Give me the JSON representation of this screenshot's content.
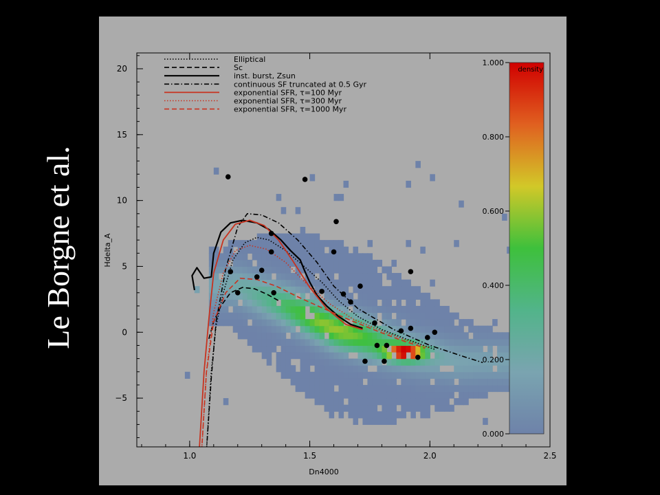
{
  "slide": {
    "side_title": "Le Borgne et al."
  },
  "chart_data": {
    "type": "scatter",
    "title": "",
    "xlabel": "Dn4000",
    "ylabel": "Hdelta_A",
    "xlim": [
      0.78,
      2.5
    ],
    "ylim": [
      -8.7,
      21.2
    ],
    "xticks": [
      1.0,
      1.5,
      2.0,
      2.5
    ],
    "xtick_labels": [
      "1.0",
      "1.5",
      "2.0",
      "2.5"
    ],
    "yticks": [
      -5,
      0,
      5,
      10,
      15,
      20
    ],
    "ytick_labels": [
      "−5",
      "0",
      "5",
      "10",
      "15",
      "20"
    ],
    "grid": false,
    "legend_position": "top-left",
    "colorbar": {
      "label": "density",
      "ticks": [
        0.0,
        0.2,
        0.4,
        0.6,
        0.8,
        1.0
      ],
      "tick_labels": [
        "0.000",
        "0.200",
        "0.400",
        "0.600",
        "0.800",
        "1.000"
      ],
      "colors": [
        "#6e82a9",
        "#7aa4b0",
        "#52b48a",
        "#3ec03c",
        "#d2c828",
        "#e06020",
        "#d00000"
      ]
    },
    "density_ridge": [
      [
        1.2,
        3.5
      ],
      [
        1.4,
        2.0
      ],
      [
        1.6,
        0.3
      ],
      [
        1.8,
        -0.8
      ],
      [
        1.95,
        -1.6
      ],
      [
        2.1,
        -2.2
      ]
    ],
    "density_peak": [
      1.9,
      -1.5
    ],
    "series": [
      {
        "name": "Elliptical",
        "color": "#000000",
        "dash": "dot",
        "width": 1.6,
        "points": [
          [
            1.07,
            -9
          ],
          [
            1.09,
            -3
          ],
          [
            1.11,
            0.5
          ],
          [
            1.14,
            3
          ],
          [
            1.18,
            5.5
          ],
          [
            1.23,
            6.8
          ],
          [
            1.28,
            7.2
          ],
          [
            1.33,
            7
          ],
          [
            1.4,
            6.2
          ],
          [
            1.47,
            5.1
          ],
          [
            1.55,
            3.8
          ],
          [
            1.62,
            2.4
          ],
          [
            1.7,
            1.2
          ],
          [
            1.8,
            0.2
          ],
          [
            1.9,
            -0.5
          ],
          [
            2.02,
            -1.3
          ]
        ]
      },
      {
        "name": "Sc",
        "color": "#000000",
        "dash": "dash",
        "width": 1.6,
        "points": [
          [
            1.08,
            -0.5
          ],
          [
            1.1,
            0.8
          ],
          [
            1.13,
            2
          ],
          [
            1.17,
            3
          ],
          [
            1.22,
            3.4
          ],
          [
            1.27,
            3.3
          ],
          [
            1.32,
            2.9
          ],
          [
            1.37,
            2.4
          ]
        ]
      },
      {
        "name": "inst. burst, Zsun",
        "color": "#000000",
        "dash": "solid",
        "width": 2.2,
        "points": [
          [
            1.02,
            3.2
          ],
          [
            1.01,
            4.3
          ],
          [
            1.03,
            4.9
          ],
          [
            1.06,
            4.1
          ],
          [
            1.09,
            4.2
          ],
          [
            1.1,
            6
          ],
          [
            1.13,
            7.6
          ],
          [
            1.17,
            8.3
          ],
          [
            1.22,
            8.5
          ],
          [
            1.28,
            8.3
          ],
          [
            1.33,
            7.8
          ],
          [
            1.38,
            7
          ],
          [
            1.42,
            6.2
          ],
          [
            1.46,
            5.5
          ],
          [
            1.48,
            4.6
          ],
          [
            1.5,
            3.8
          ],
          [
            1.53,
            2.8
          ],
          [
            1.57,
            2.0
          ],
          [
            1.62,
            1.2
          ],
          [
            1.67,
            0.6
          ],
          [
            1.72,
            0.3
          ]
        ]
      },
      {
        "name": "continuous SF truncated at 0.5 Gyr",
        "color": "#000000",
        "dash": "dashdot",
        "width": 1.6,
        "points": [
          [
            1.07,
            -9
          ],
          [
            1.09,
            -3.5
          ],
          [
            1.11,
            0.8
          ],
          [
            1.15,
            4.8
          ],
          [
            1.2,
            8
          ],
          [
            1.24,
            9
          ],
          [
            1.3,
            8.9
          ],
          [
            1.37,
            8.3
          ],
          [
            1.45,
            7
          ],
          [
            1.53,
            5.3
          ],
          [
            1.6,
            3.5
          ],
          [
            1.7,
            1.8
          ],
          [
            1.85,
            0.2
          ],
          [
            2.0,
            -1
          ],
          [
            2.15,
            -1.9
          ],
          [
            2.22,
            -2.3
          ]
        ]
      },
      {
        "name": "exponential SFR, τ=100 Myr",
        "color": "#c8321e",
        "dash": "solid",
        "width": 1.8,
        "points": [
          [
            1.04,
            -9
          ],
          [
            1.06,
            -3
          ],
          [
            1.08,
            1
          ],
          [
            1.1,
            4.5
          ],
          [
            1.14,
            7
          ],
          [
            1.19,
            8.2
          ],
          [
            1.25,
            8.5
          ],
          [
            1.31,
            8.1
          ],
          [
            1.37,
            7
          ],
          [
            1.43,
            5.4
          ],
          [
            1.5,
            3.4
          ],
          [
            1.57,
            1.8
          ],
          [
            1.65,
            0.6
          ],
          [
            1.72,
            0.2
          ]
        ]
      },
      {
        "name": "exponential SFR, τ=300 Myr",
        "color": "#c8321e",
        "dash": "dot",
        "width": 1.6,
        "points": [
          [
            1.05,
            -9
          ],
          [
            1.07,
            -3
          ],
          [
            1.1,
            1.5
          ],
          [
            1.14,
            4.5
          ],
          [
            1.19,
            6.2
          ],
          [
            1.25,
            6.6
          ],
          [
            1.32,
            6.3
          ],
          [
            1.4,
            5.3
          ],
          [
            1.48,
            3.8
          ],
          [
            1.58,
            2.2
          ],
          [
            1.68,
            1.0
          ],
          [
            1.8,
            0.1
          ],
          [
            1.9,
            -0.6
          ],
          [
            2.0,
            -1.2
          ]
        ]
      },
      {
        "name": "exponential SFR, τ=1000 Myr",
        "color": "#c8321e",
        "dash": "dash",
        "width": 1.6,
        "points": [
          [
            1.05,
            -9
          ],
          [
            1.07,
            -3
          ],
          [
            1.1,
            0.8
          ],
          [
            1.15,
            3
          ],
          [
            1.21,
            4.1
          ],
          [
            1.28,
            4
          ],
          [
            1.36,
            3.5
          ],
          [
            1.46,
            2.6
          ],
          [
            1.57,
            1.7
          ],
          [
            1.67,
            0.9
          ],
          [
            1.78,
            0.1
          ],
          [
            1.88,
            -0.6
          ],
          [
            1.98,
            -1.2
          ]
        ]
      }
    ],
    "points": [
      {
        "x": 1.16,
        "y": 11.8
      },
      {
        "x": 1.48,
        "y": 11.6
      },
      {
        "x": 1.61,
        "y": 8.4
      },
      {
        "x": 1.34,
        "y": 7.5
      },
      {
        "x": 1.34,
        "y": 6.1
      },
      {
        "x": 1.6,
        "y": 6.1
      },
      {
        "x": 1.3,
        "y": 4.7
      },
      {
        "x": 1.17,
        "y": 4.6
      },
      {
        "x": 1.28,
        "y": 4.2
      },
      {
        "x": 1.92,
        "y": 4.6
      },
      {
        "x": 1.71,
        "y": 3.5
      },
      {
        "x": 1.2,
        "y": 3.0
      },
      {
        "x": 1.35,
        "y": 3.0
      },
      {
        "x": 1.55,
        "y": 3.1
      },
      {
        "x": 1.64,
        "y": 2.9
      },
      {
        "x": 1.67,
        "y": 2.3
      },
      {
        "x": 1.77,
        "y": 0.7
      },
      {
        "x": 1.88,
        "y": 0.1
      },
      {
        "x": 1.92,
        "y": 0.3
      },
      {
        "x": 1.99,
        "y": -0.4
      },
      {
        "x": 2.02,
        "y": 0.0
      },
      {
        "x": 1.78,
        "y": -1.0
      },
      {
        "x": 1.82,
        "y": -1.0
      },
      {
        "x": 1.73,
        "y": -2.2
      },
      {
        "x": 1.81,
        "y": -2.2
      },
      {
        "x": 1.95,
        "y": -1.9
      }
    ]
  }
}
